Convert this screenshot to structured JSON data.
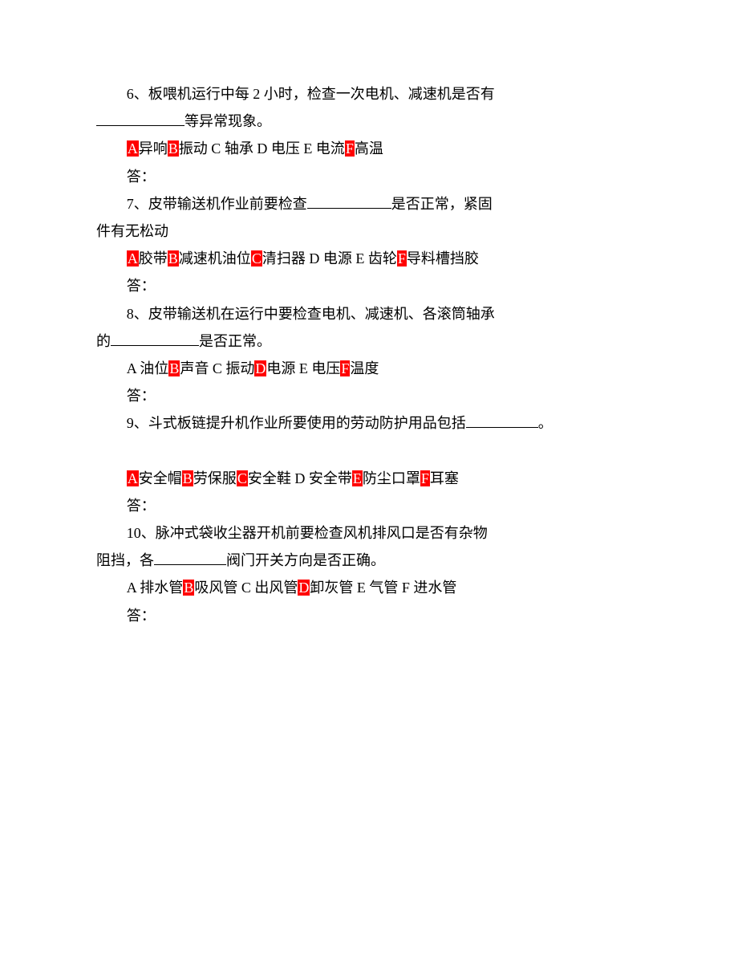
{
  "styling": {
    "highlight_bg": "#ff0000",
    "highlight_fg": "#ffffff",
    "text_color": "#000000",
    "background": "#ffffff",
    "font_size_pt": 14,
    "line_height": 1.9,
    "font_family": "SimSun"
  },
  "q6": {
    "line1a": "6、板喂机运行中每 2 小时，检查一次电机、减速机是否有",
    "line2a": "等异常现象。",
    "optA": "A",
    "optAtext": "异响",
    "optB": "B",
    "optBtext": "振动 C 轴承 D 电压 E 电流",
    "optF": "F",
    "optFtext": "高温",
    "ans": "答："
  },
  "q7": {
    "line1a": "7、皮带输送机作业前要检查",
    "line1b": "是否正常，紧固",
    "line2": "件有无松动",
    "optA": "A",
    "optAtext": "胶带",
    "optB": "B",
    "optBtext": "减速机油位",
    "optC": "C",
    "optCtext": "清扫器 D 电源 E 齿轮",
    "optF": "F",
    "optFtext": "导料槽挡胶",
    "ans": "答："
  },
  "q8": {
    "line1": "8、皮带输送机在运行中要检查电机、减速机、各滚筒轴承",
    "line2a": "的",
    "line2b": "是否正常。",
    "optA": "A 油位",
    "optB": "B",
    "optBtext": "声音 C 振动",
    "optD": "D",
    "optDtext": "电源 E 电压",
    "optF": "F",
    "optFtext": "温度",
    "ans": "答："
  },
  "q9": {
    "line1": "9、斗式板链提升机作业所要使用的劳动防护用品包括",
    "line1end": "。",
    "optA": "A",
    "optAtext": "安全帽",
    "optB": "B",
    "optBtext": "劳保服",
    "optC": "C",
    "optCtext": "安全鞋 D 安全带",
    "optE": "E",
    "optEtext": "防尘口罩",
    "optF": "F",
    "optFtext": "耳塞",
    "ans": "答："
  },
  "q10": {
    "line1": "10、脉冲式袋收尘器开机前要检查风机排风口是否有杂物",
    "line2a": "阻挡，各",
    "line2b": "阀门开关方向是否正确。",
    "optA": "A 排水管",
    "optB": "B",
    "optBtext": "吸风管 C 出风管",
    "optD": "D",
    "optDtext": "卸灰管 E 气管 F 进水管",
    "ans": "答："
  }
}
